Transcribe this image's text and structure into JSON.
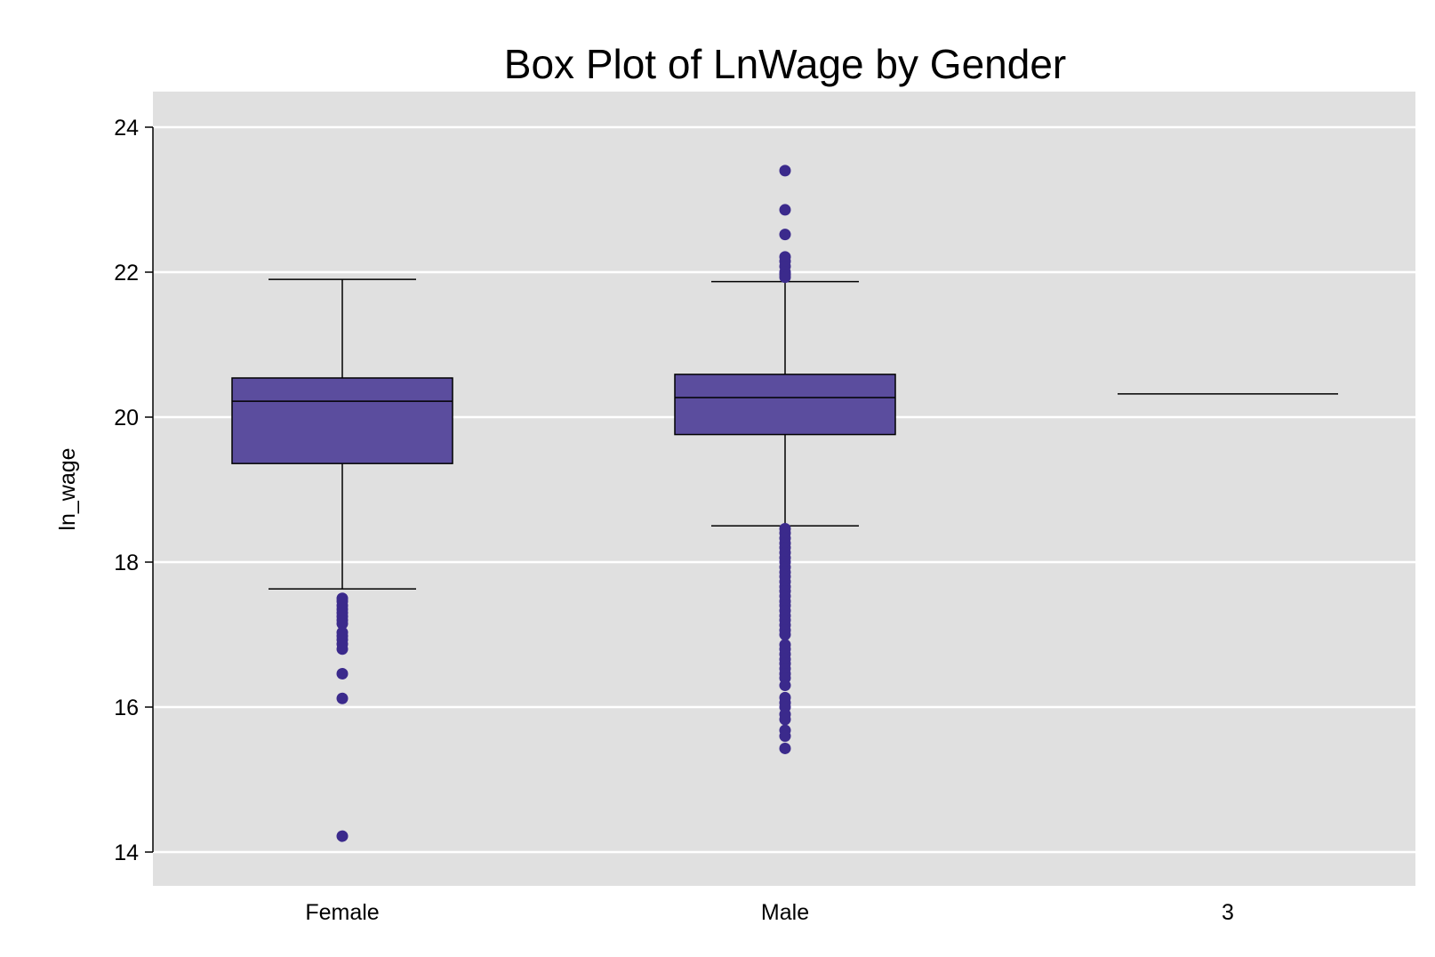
{
  "chart_data": {
    "type": "box",
    "title": "Box Plot of LnWage by Gender",
    "xlabel": "",
    "ylabel": "ln_wage",
    "ylim": [
      13.55,
      24.5
    ],
    "yticks": [
      14,
      16,
      18,
      20,
      22,
      24
    ],
    "ytick_labels": [
      "14",
      "16",
      "18",
      "20",
      "22",
      "24"
    ],
    "grid": "horizontal",
    "colors": {
      "background": "#ffffff",
      "panel": "#e0e0e0",
      "grid": "#ffffff",
      "box_fill": "#5b4d9e",
      "outlier": "#3b2a8c",
      "line": "#000000"
    },
    "categories": [
      "Female",
      "Male",
      "3"
    ],
    "boxes": [
      {
        "category": "Female",
        "whisker_low": 17.63,
        "q1": 19.36,
        "median": 20.22,
        "q3": 20.54,
        "whisker_high": 21.9,
        "outliers": [
          17.5,
          17.46,
          17.4,
          17.35,
          17.3,
          17.25,
          17.2,
          17.15,
          17.03,
          16.98,
          16.93,
          16.87,
          16.8,
          16.46,
          16.12,
          14.22
        ]
      },
      {
        "category": "Male",
        "whisker_low": 18.5,
        "q1": 19.76,
        "median": 20.27,
        "q3": 20.59,
        "whisker_high": 21.87,
        "outliers": [
          23.4,
          22.86,
          22.52,
          22.21,
          22.15,
          22.08,
          22.0,
          21.97,
          21.93,
          18.46,
          18.4,
          18.33,
          18.26,
          18.2,
          18.13,
          18.06,
          18.0,
          17.93,
          17.86,
          17.8,
          17.73,
          17.66,
          17.6,
          17.53,
          17.46,
          17.4,
          17.33,
          17.26,
          17.2,
          17.13,
          17.06,
          17.0,
          16.86,
          16.8,
          16.73,
          16.66,
          16.6,
          16.53,
          16.46,
          16.4,
          16.3,
          16.13,
          16.06,
          16.0,
          15.9,
          15.83,
          15.68,
          15.6,
          15.43
        ]
      },
      {
        "category": "3",
        "whisker_low": 20.32,
        "q1": 20.32,
        "median": 20.32,
        "q3": 20.32,
        "whisker_high": 20.32,
        "outliers": []
      }
    ]
  }
}
